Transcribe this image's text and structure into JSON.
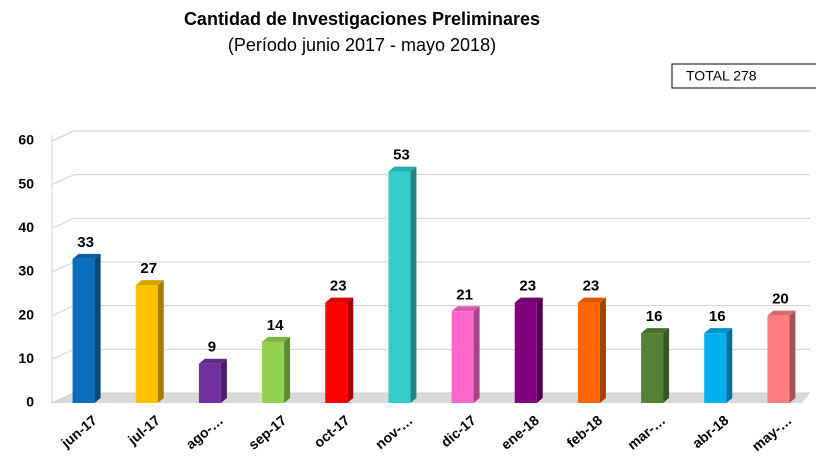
{
  "chart_data": {
    "type": "bar3d",
    "title": "Cantidad de Investigaciones Preliminares",
    "subtitle": "(Período junio 2017 - mayo 2018)",
    "annotation": "TOTAL 278",
    "categories": [
      "jun-17",
      "jul-17",
      "ago-…",
      "sep-17",
      "oct-17",
      "nov-…",
      "dic-17",
      "ene-18",
      "feb-18",
      "mar-…",
      "abr-18",
      "may-…"
    ],
    "values": [
      33,
      27,
      9,
      14,
      23,
      53,
      21,
      23,
      23,
      16,
      16,
      20
    ],
    "colors": [
      "#0a6ebd",
      "#ffc000",
      "#7030a0",
      "#92d050",
      "#ff0000",
      "#33cccc",
      "#ff66cc",
      "#800080",
      "#ff6600",
      "#548235",
      "#00b0f0",
      "#ff7c80"
    ],
    "ylim": [
      0,
      60
    ],
    "yticks": [
      0,
      10,
      20,
      30,
      40,
      50,
      60
    ],
    "grid": true
  }
}
